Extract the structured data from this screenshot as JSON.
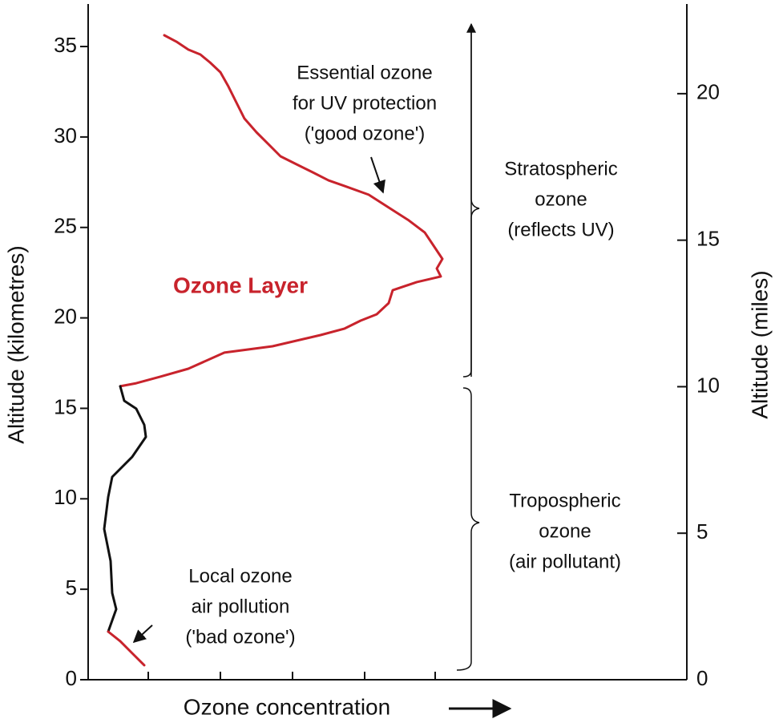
{
  "chart_data": {
    "type": "line",
    "xlabel": "Ozone concentration",
    "ylabel": "Altitude (kilometres)",
    "y2label": "Altitude (miles)",
    "xlim": [
      0,
      74.7
    ],
    "xticks": [
      7.5,
      16.5,
      25.5,
      34.5,
      43.3
    ],
    "ylim": [
      0,
      37.35
    ],
    "yticks": [
      0,
      5,
      10,
      15,
      20,
      25,
      30,
      35
    ],
    "y2lim": [
      0,
      23.06
    ],
    "y2ticks": [
      0,
      5,
      10,
      15,
      20
    ],
    "series": [
      {
        "color": "#c8232c",
        "x": [
          9.5,
          11.0,
          12.5,
          14.0,
          15.2,
          16.5,
          17.5,
          18.5,
          19.5,
          21.0,
          22.5,
          24.0,
          26.0,
          28.0,
          30.0,
          32.0,
          35.0,
          38.0,
          40.0,
          42.0,
          43.0,
          44.2,
          43.5,
          44.0,
          41.0,
          38.0,
          37.5,
          36.0,
          34.0,
          32.0,
          29.0,
          23.0,
          17.0,
          12.5,
          9.0,
          6.0,
          4.0
        ],
        "values": [
          35.62,
          35.27,
          34.83,
          34.56,
          34.12,
          33.58,
          32.79,
          31.9,
          31.02,
          30.26,
          29.6,
          28.93,
          28.49,
          28.05,
          27.6,
          27.29,
          26.81,
          25.96,
          25.39,
          24.72,
          24.06,
          23.26,
          22.73,
          22.29,
          21.98,
          21.53,
          20.82,
          20.2,
          19.85,
          19.41,
          19.05,
          18.43,
          18.08,
          17.19,
          16.75,
          16.39,
          16.22
        ]
      },
      {
        "color": "#111111",
        "x": [
          4.0,
          4.5,
          6.0,
          7.0,
          7.2,
          5.5,
          3.0,
          2.5,
          2.0,
          2.8,
          3.0,
          3.5,
          2.5
        ],
        "values": [
          16.22,
          15.42,
          14.98,
          14.09,
          13.42,
          12.32,
          11.21,
          10.1,
          8.33,
          6.56,
          4.79,
          3.9,
          2.66
        ]
      },
      {
        "color": "#c8232c",
        "x": [
          2.5,
          4.0,
          5.5,
          7.0
        ],
        "values": [
          2.66,
          2.13,
          1.46,
          0.8
        ]
      }
    ],
    "annotations": [
      {
        "lines": [
          "Ozone Layer"
        ],
        "color": "#c8232c"
      },
      {
        "lines": [
          "Essential ozone",
          "for UV protection",
          "('good ozone')"
        ]
      },
      {
        "lines": [
          "Stratospheric",
          "ozone",
          "(reflects UV)"
        ]
      },
      {
        "lines": [
          "Tropospheric",
          "ozone",
          "(air pollutant)"
        ]
      },
      {
        "lines": [
          "Local ozone",
          "air pollution",
          "('bad ozone')"
        ]
      }
    ]
  }
}
